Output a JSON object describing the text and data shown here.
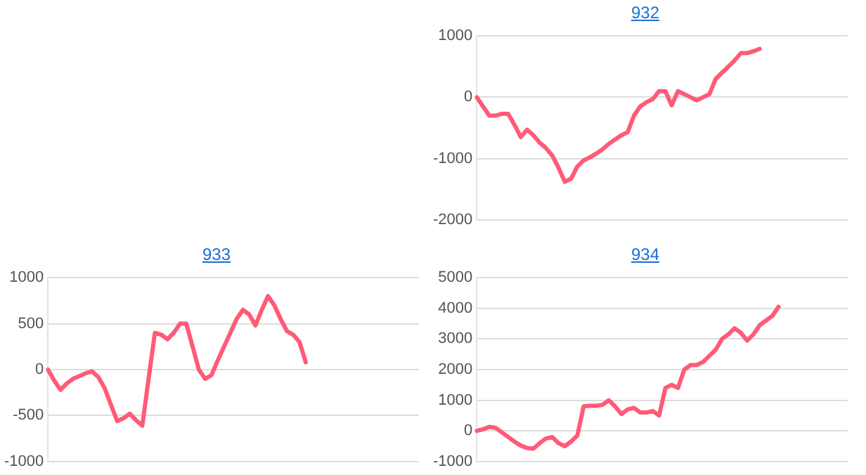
{
  "chart_data": [
    {
      "type": "line",
      "title": "932",
      "categories": [
        null,
        null,
        null,
        null,
        null,
        null,
        null,
        null,
        null,
        null,
        null,
        null,
        null,
        null,
        null,
        null,
        null,
        null,
        null,
        null,
        null,
        null,
        null,
        null,
        null,
        null,
        null,
        null,
        null,
        null,
        null,
        null,
        null,
        null,
        null,
        null,
        null,
        null,
        null,
        null,
        null,
        null,
        null,
        null,
        null,
        null,
        null,
        null,
        null,
        null,
        null,
        null,
        null,
        null,
        null,
        null,
        null,
        null,
        null,
        null
      ],
      "series": [
        {
          "color": "#ff5a78",
          "values": [
            0,
            -150,
            -300,
            -300,
            -270,
            -270,
            -450,
            -650,
            -530,
            -620,
            -740,
            -830,
            -950,
            -1150,
            -1380,
            -1330,
            -1130,
            -1030,
            -980,
            -920,
            -850,
            -760,
            -690,
            -620,
            -570,
            -300,
            -150,
            -80,
            -30,
            100,
            100,
            -130,
            100,
            50,
            0,
            -50,
            0,
            50,
            300,
            400,
            500,
            600,
            720,
            720,
            750,
            790,
            null,
            null,
            null,
            null,
            null,
            null,
            null,
            null,
            null,
            null,
            null,
            null,
            null,
            null
          ]
        }
      ],
      "ylim": [
        -2000,
        1000
      ],
      "yticks": [
        -2000,
        -1000,
        0,
        1000
      ],
      "grid": "y",
      "tick_labels": "y",
      "marker": "none",
      "line_style": "solid",
      "legend": false
    },
    {
      "type": "line",
      "title": "933",
      "categories": [
        null,
        null,
        null,
        null,
        null,
        null,
        null,
        null,
        null,
        null,
        null,
        null,
        null,
        null,
        null,
        null,
        null,
        null,
        null,
        null,
        null,
        null,
        null,
        null,
        null,
        null,
        null,
        null,
        null,
        null,
        null,
        null,
        null,
        null,
        null,
        null,
        null,
        null,
        null,
        null,
        null,
        null,
        null,
        null,
        null,
        null,
        null,
        null,
        null,
        null,
        null,
        null,
        null,
        null,
        null,
        null,
        null,
        null,
        null,
        null
      ],
      "series": [
        {
          "color": "#ff5a78",
          "values": [
            0,
            -120,
            -220,
            -150,
            -100,
            -70,
            -40,
            -20,
            -80,
            -200,
            -380,
            -560,
            -530,
            -480,
            -550,
            -610,
            -100,
            400,
            380,
            330,
            400,
            500,
            500,
            250,
            0,
            -100,
            -60,
            100,
            250,
            400,
            550,
            650,
            600,
            480,
            650,
            800,
            700,
            550,
            420,
            380,
            300,
            80,
            null,
            null,
            null,
            null,
            null,
            null,
            null,
            null,
            null,
            null,
            null,
            null,
            null,
            null,
            null,
            null,
            null,
            null
          ]
        }
      ],
      "ylim": [
        -1000,
        1000
      ],
      "yticks": [
        -1000,
        -500,
        0,
        500,
        1000
      ],
      "grid": "y",
      "tick_labels": "y",
      "marker": "none",
      "line_style": "solid",
      "legend": false
    },
    {
      "type": "line",
      "title": "934",
      "categories": [
        null,
        null,
        null,
        null,
        null,
        null,
        null,
        null,
        null,
        null,
        null,
        null,
        null,
        null,
        null,
        null,
        null,
        null,
        null,
        null,
        null,
        null,
        null,
        null,
        null,
        null,
        null,
        null,
        null,
        null,
        null,
        null,
        null,
        null,
        null,
        null,
        null,
        null,
        null,
        null,
        null,
        null,
        null,
        null,
        null,
        null,
        null,
        null,
        null,
        null,
        null,
        null,
        null,
        null,
        null,
        null,
        null,
        null,
        null,
        null
      ],
      "series": [
        {
          "color": "#ff5a78",
          "values": [
            0,
            50,
            130,
            100,
            -50,
            -200,
            -350,
            -480,
            -560,
            -580,
            -400,
            -250,
            -200,
            -400,
            -500,
            -350,
            -150,
            800,
            820,
            820,
            850,
            1000,
            800,
            550,
            700,
            750,
            600,
            600,
            650,
            500,
            1400,
            1500,
            1400,
            2000,
            2150,
            2150,
            2250,
            2450,
            2650,
            3000,
            3150,
            3350,
            3200,
            2950,
            3150,
            3450,
            3600,
            3750,
            4050,
            null,
            null,
            null,
            null,
            null,
            null,
            null,
            null,
            null,
            null,
            null
          ]
        }
      ],
      "ylim": [
        -1000,
        5000
      ],
      "yticks": [
        -1000,
        0,
        1000,
        2000,
        3000,
        4000,
        5000
      ],
      "grid": "y",
      "tick_labels": "y",
      "marker": "none",
      "line_style": "solid",
      "legend": false
    }
  ]
}
